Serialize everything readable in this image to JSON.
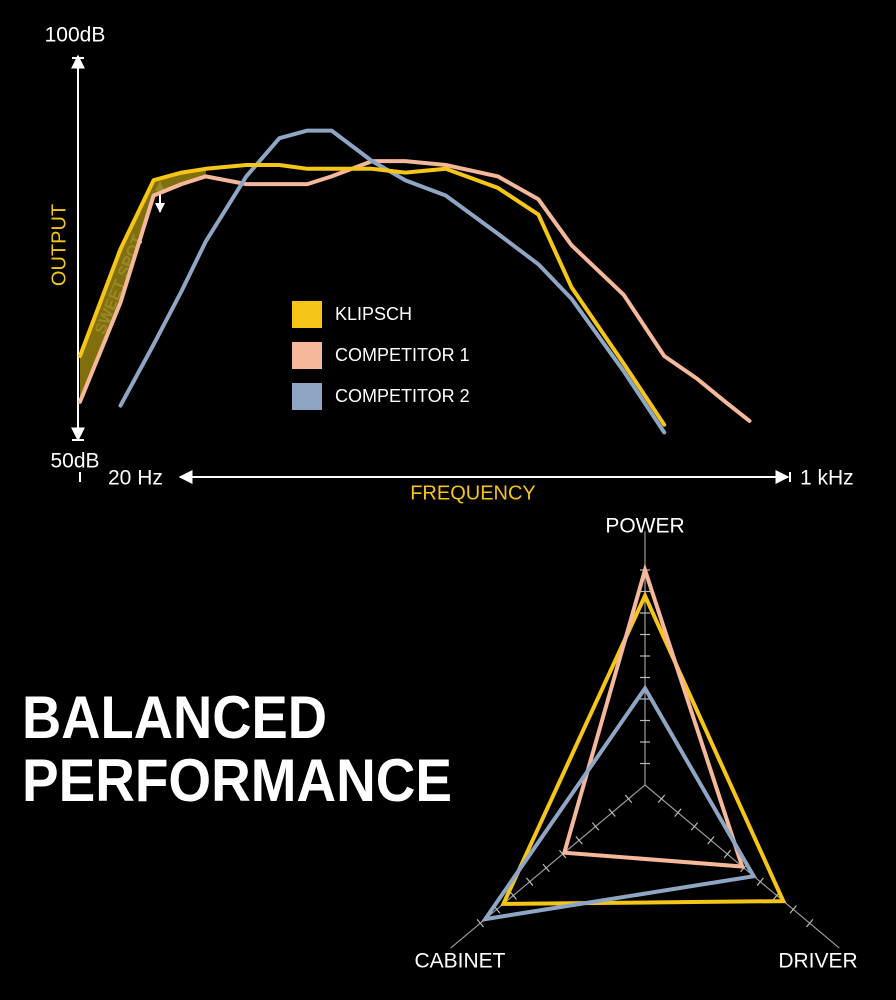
{
  "chart_data": [
    {
      "type": "line",
      "x_scale": "log",
      "x": [
        20,
        25,
        30,
        35,
        40,
        50,
        60,
        70,
        80,
        100,
        120,
        150,
        200,
        250,
        300,
        400,
        500,
        600,
        700,
        800,
        1000
      ],
      "xlim": [
        20,
        1000
      ],
      "xticks": [
        {
          "value": 20,
          "label": "20 Hz"
        },
        {
          "value": 1000,
          "label": "1 kHz"
        }
      ],
      "ylim": [
        50,
        100
      ],
      "yticks": [
        {
          "value": 50,
          "label": "50dB"
        },
        {
          "value": 100,
          "label": "100dB"
        }
      ],
      "xlabel": "FREQUENCY",
      "ylabel": "OUTPUT",
      "annotation": "SWEET SPOT",
      "series": [
        {
          "name": "KLIPSCH",
          "color": "#f5c518",
          "values": [
            61,
            75,
            84,
            85,
            85.5,
            86,
            86,
            85.5,
            85.5,
            85.5,
            85,
            85.5,
            83,
            79.5,
            70,
            60,
            52,
            null,
            null,
            null,
            null
          ]
        },
        {
          "name": "COMPETITOR 1",
          "color": "#f6b89a",
          "values": [
            55,
            68,
            82,
            83.5,
            84.5,
            83.5,
            83.5,
            83.5,
            84.5,
            86.5,
            86.5,
            86,
            84.5,
            81.5,
            75.5,
            69,
            61,
            58,
            55,
            52.5,
            null
          ]
        },
        {
          "name": "COMPETITOR 2",
          "color": "#8ea6c4",
          "values": [
            null,
            54.5,
            62.5,
            69.5,
            76,
            84.5,
            89.5,
            90.5,
            90.5,
            86.5,
            84,
            82,
            77,
            73,
            68.5,
            59,
            51,
            null,
            null,
            null,
            null
          ]
        }
      ]
    },
    {
      "type": "radar",
      "title_lines": [
        "BALANCED",
        "PERFORMANCE"
      ],
      "axes": [
        "POWER",
        "DRIVER",
        "CABINET"
      ],
      "rlim": [
        0,
        10
      ],
      "rticks": [
        1,
        2,
        3,
        4,
        5,
        6,
        7,
        8,
        9,
        10
      ],
      "series": [
        {
          "name": "KLIPSCH",
          "color": "#f5c518",
          "values": [
            8.8,
            8.4,
            8.6
          ]
        },
        {
          "name": "COMPETITOR 1",
          "color": "#f6b89a",
          "values": [
            10,
            5.9,
            4.9
          ]
        },
        {
          "name": "COMPETITOR 2",
          "color": "#8ea6c4",
          "values": [
            4.5,
            6.6,
            9.7
          ]
        }
      ]
    }
  ]
}
